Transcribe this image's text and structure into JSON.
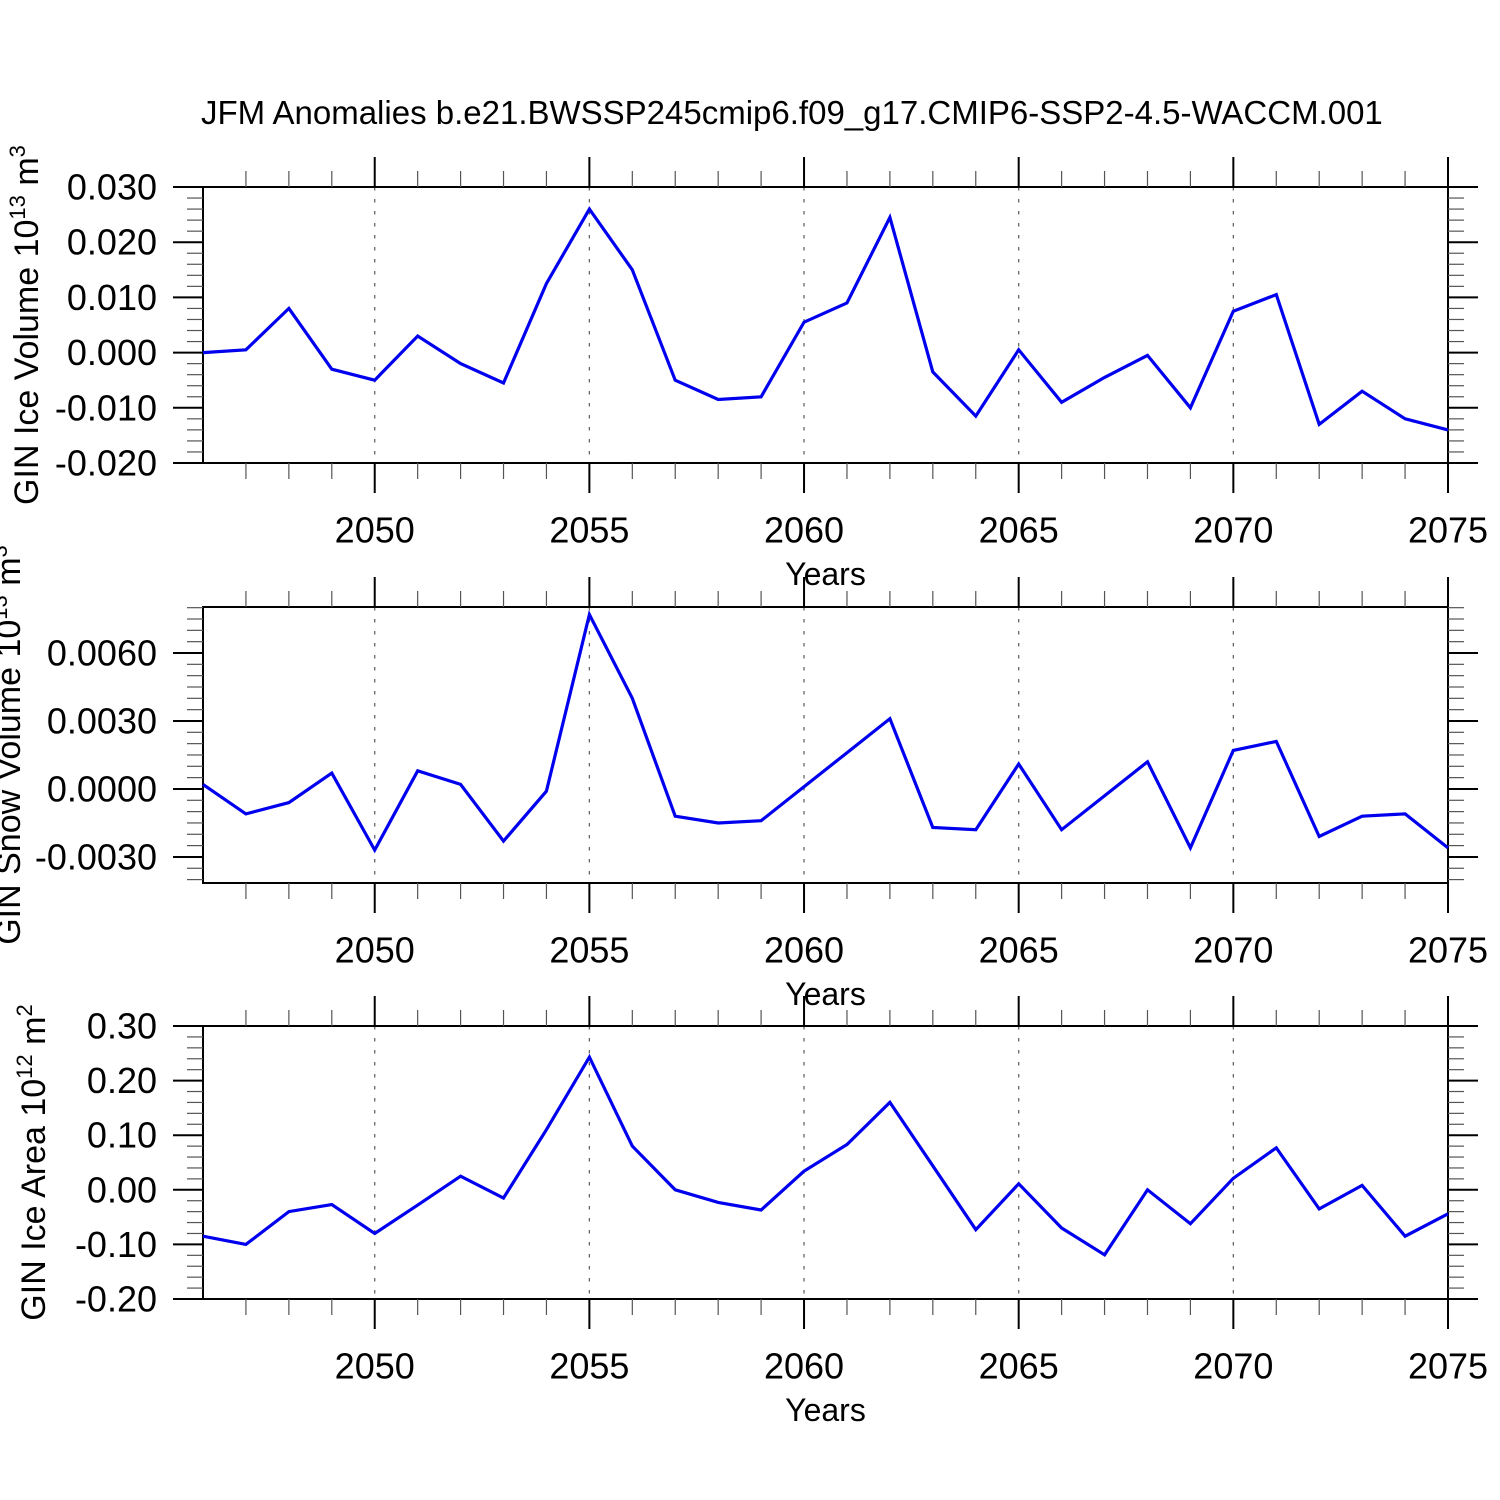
{
  "title": "JFM Anomalies b.e21.BWSSP245cmip6.f09_g17.CMIP6-SSP2-4.5-WACCM.001",
  "colors": {
    "line": "#0000ee",
    "grid": "#666666",
    "frame": "#000000",
    "minor_tick": "#555555",
    "text": "#000000"
  },
  "x_axis": {
    "label": "Years",
    "start": 2046,
    "end": 2075,
    "years": [
      2046,
      2047,
      2048,
      2049,
      2050,
      2051,
      2052,
      2053,
      2054,
      2055,
      2056,
      2057,
      2058,
      2059,
      2060,
      2061,
      2062,
      2063,
      2064,
      2065,
      2066,
      2067,
      2068,
      2069,
      2070,
      2071,
      2072,
      2073,
      2074,
      2075
    ],
    "major_ticks": [
      {
        "v": 2050,
        "t": "2050"
      },
      {
        "v": 2055,
        "t": "2055"
      },
      {
        "v": 2060,
        "t": "2060"
      },
      {
        "v": 2065,
        "t": "2065"
      },
      {
        "v": 2070,
        "t": "2070"
      },
      {
        "v": 2075,
        "t": "2075"
      }
    ],
    "gridline_years": [
      2050,
      2055,
      2060,
      2065,
      2070
    ]
  },
  "chart_data": [
    {
      "type": "line",
      "name": "gin-ice-volume",
      "ylabel": "GIN Ice Volume 10^13 m^3",
      "ylabel_parts": [
        {
          "t": "GIN Ice Volume 10"
        },
        {
          "t": "13",
          "sup": true
        },
        {
          "t": " m"
        },
        {
          "t": "3",
          "sup": true
        }
      ],
      "xlabel": "Years",
      "ylim": [
        -0.02,
        0.03
      ],
      "y_minor_step": 0.002,
      "yticks": [
        {
          "v": -0.02,
          "t": "-0.020"
        },
        {
          "v": -0.01,
          "t": "-0.010"
        },
        {
          "v": 0.0,
          "t": "0.000"
        },
        {
          "v": 0.01,
          "t": "0.010"
        },
        {
          "v": 0.02,
          "t": "0.020"
        },
        {
          "v": 0.03,
          "t": "0.030"
        }
      ],
      "values": [
        0.0,
        0.0005,
        0.008,
        -0.003,
        -0.005,
        0.003,
        -0.002,
        -0.0055,
        0.0125,
        0.026,
        0.015,
        -0.005,
        -0.0085,
        -0.008,
        0.0055,
        0.009,
        0.0245,
        -0.0035,
        -0.0115,
        0.0005,
        -0.009,
        -0.0045,
        -0.0005,
        -0.01,
        0.0075,
        0.0105,
        -0.013,
        -0.007,
        -0.012,
        -0.014
      ]
    },
    {
      "type": "line",
      "name": "gin-snow-volume",
      "ylabel": "GIN Snow Volume 10^13 m^3",
      "ylabel_parts": [
        {
          "t": "GIN Snow Volume 10"
        },
        {
          "t": "13",
          "sup": true
        },
        {
          "t": " m"
        },
        {
          "t": "3",
          "sup": true
        }
      ],
      "xlabel": "Years",
      "ylim": [
        -0.00415,
        0.00803
      ],
      "y_minor_step": 0.0005,
      "yticks": [
        {
          "v": -0.003,
          "t": "-0.0030"
        },
        {
          "v": 0.0,
          "t": "0.0000"
        },
        {
          "v": 0.003,
          "t": "0.0030"
        },
        {
          "v": 0.006,
          "t": "0.0060"
        }
      ],
      "values": [
        0.0002,
        -0.0011,
        -0.0006,
        0.0007,
        -0.0027,
        0.0008,
        0.0002,
        -0.0023,
        -0.0001,
        0.0077,
        0.004,
        -0.0012,
        -0.0015,
        -0.0014,
        0.0001,
        0.0016,
        0.0031,
        -0.0017,
        -0.0018,
        0.0011,
        -0.0018,
        -0.0003,
        0.0012,
        -0.0026,
        0.0017,
        0.0021,
        -0.0021,
        -0.0012,
        -0.0011,
        -0.0026
      ]
    },
    {
      "type": "line",
      "name": "gin-ice-area",
      "ylabel": "GIN Ice Area 10^12 m^2",
      "ylabel_parts": [
        {
          "t": "GIN Ice Area 10"
        },
        {
          "t": "12",
          "sup": true
        },
        {
          "t": " m"
        },
        {
          "t": "2",
          "sup": true
        }
      ],
      "xlabel": "Years",
      "ylim": [
        -0.2,
        0.3
      ],
      "y_minor_step": 0.02,
      "yticks": [
        {
          "v": -0.2,
          "t": "-0.20"
        },
        {
          "v": -0.1,
          "t": "-0.10"
        },
        {
          "v": 0.0,
          "t": "0.00"
        },
        {
          "v": 0.1,
          "t": "0.10"
        },
        {
          "v": 0.2,
          "t": "0.20"
        },
        {
          "v": 0.3,
          "t": "0.30"
        }
      ],
      "values": [
        -0.085,
        -0.1,
        -0.04,
        -0.027,
        -0.08,
        -0.028,
        0.025,
        -0.015,
        0.11,
        0.243,
        0.08,
        0.0,
        -0.023,
        -0.037,
        0.034,
        0.083,
        0.16,
        0.044,
        -0.073,
        0.011,
        -0.07,
        -0.119,
        0.0,
        -0.062,
        0.021,
        0.077,
        -0.035,
        0.008,
        -0.085,
        -0.044
      ]
    }
  ]
}
